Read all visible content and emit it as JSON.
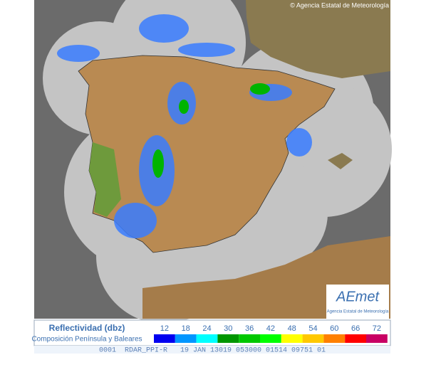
{
  "copyright": "© Agencia Estatal de Meteorología",
  "logo": {
    "name": "AEmet",
    "subtitle": "Agencia Estatal de Meteorología"
  },
  "legend": {
    "title": "Reflectividad (dbz)",
    "subtitle": "Composición Península y Baleares",
    "scale": [
      {
        "value": 12,
        "color": "#0000f0"
      },
      {
        "value": 18,
        "color": "#0096ff"
      },
      {
        "value": 24,
        "color": "#00ffff"
      },
      {
        "value": 30,
        "color": "#009600"
      },
      {
        "value": 36,
        "color": "#00c800"
      },
      {
        "value": 42,
        "color": "#00ff00"
      },
      {
        "value": 48,
        "color": "#ffff00"
      },
      {
        "value": 54,
        "color": "#ffc800"
      },
      {
        "value": 60,
        "color": "#ff8000"
      },
      {
        "value": 66,
        "color": "#ff0000"
      },
      {
        "value": 72,
        "color": "#c80064"
      }
    ]
  },
  "footer": "0001  RDAR_PPI-R   19 JAN 13019 053000 01514 09751 01"
}
